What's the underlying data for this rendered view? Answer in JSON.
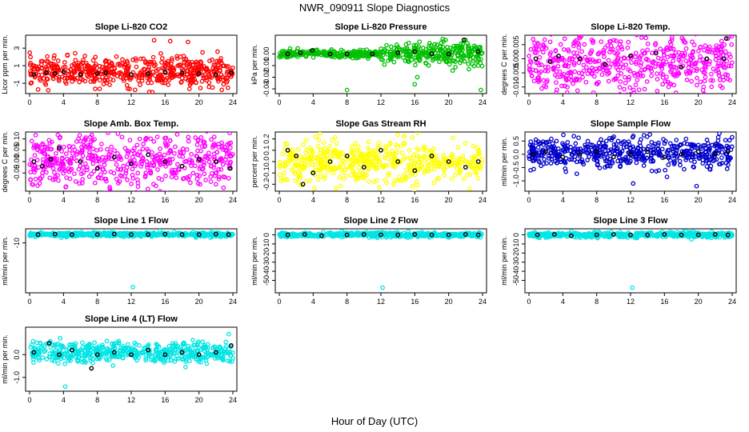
{
  "page_title": "NWR_090911  Slope Diagnostics",
  "x_axis_label": "Hour of Day (UTC)",
  "colors": {
    "black_series": "#000000",
    "background": "#ffffff"
  },
  "chart_data": [
    {
      "type": "scatter",
      "title": "Slope Li-820 CO2",
      "ylabel": "Licor ppm per min.",
      "xlim": [
        0,
        24
      ],
      "ylim": [
        -1.9,
        4.2
      ],
      "xticks": [
        0,
        4,
        8,
        12,
        16,
        20,
        24
      ],
      "yticks": [
        -1,
        1,
        3
      ],
      "color": "#ff0000",
      "density": [
        [
          0,
          24,
          0.3,
          0.8
        ]
      ],
      "outliers": [
        [
          14.7,
          3.9
        ],
        [
          16.6,
          3.8
        ],
        [
          18.7,
          3.7
        ],
        [
          15.5,
          2.4
        ],
        [
          16.8,
          1.6
        ],
        [
          18.2,
          2.1
        ],
        [
          1.0,
          -1.7
        ],
        [
          2.2,
          -1.8
        ],
        [
          11.6,
          -1.6
        ]
      ],
      "black_points": [
        [
          0.5,
          0.0
        ],
        [
          2.0,
          0.2
        ],
        [
          3.0,
          0.1
        ],
        [
          4.0,
          0.3
        ],
        [
          6.0,
          0.0
        ],
        [
          8.0,
          0.1
        ],
        [
          9.0,
          0.2
        ],
        [
          12.0,
          0.0
        ],
        [
          14.0,
          0.1
        ],
        [
          16.0,
          0.3
        ],
        [
          18.0,
          0.2
        ],
        [
          20.0,
          0.1
        ],
        [
          22.0,
          0.0
        ],
        [
          23.8,
          0.2
        ]
      ]
    },
    {
      "type": "scatter",
      "title": "Slope Li-820 Pressure",
      "ylabel": "kPa per min.",
      "xlim": [
        0,
        24
      ],
      "ylim": [
        -0.032,
        0.014
      ],
      "xticks": [
        0,
        4,
        8,
        12,
        16,
        20,
        24
      ],
      "yticks": [
        -0.03,
        -0.02,
        -0.01,
        0.0
      ],
      "color": "#00c000",
      "density": [
        [
          0,
          12,
          0.0,
          0.0015
        ],
        [
          12,
          24,
          0.0,
          0.005
        ]
      ],
      "outliers": [
        [
          8.0,
          -0.031
        ],
        [
          16.0,
          -0.026
        ],
        [
          23.8,
          -0.031
        ],
        [
          16.3,
          -0.02
        ],
        [
          22.0,
          0.012
        ]
      ],
      "black_points": [
        [
          1.0,
          0.0
        ],
        [
          2.5,
          0.001
        ],
        [
          3.9,
          0.003
        ],
        [
          6.0,
          0.0
        ],
        [
          8.0,
          0.0
        ],
        [
          11.0,
          0.0
        ],
        [
          14.0,
          0.001
        ],
        [
          16.0,
          0.002
        ],
        [
          18.0,
          0.0
        ],
        [
          20.0,
          0.0
        ],
        [
          21.8,
          0.012
        ],
        [
          23.5,
          0.002
        ]
      ]
    },
    {
      "type": "scatter",
      "title": "Slope Li-820 Temp.",
      "ylabel": "degrees C per min.",
      "xlim": [
        0,
        24
      ],
      "ylim": [
        -0.0115,
        0.0075
      ],
      "xticks": [
        0,
        4,
        8,
        12,
        16,
        20,
        24
      ],
      "yticks": [
        -0.01,
        -0.005,
        0.0,
        0.005
      ],
      "color": "#ff00ff",
      "density": [
        [
          0,
          24,
          -0.002,
          0.005
        ]
      ],
      "outliers": [
        [
          2.0,
          -0.01
        ],
        [
          3.3,
          -0.011
        ],
        [
          13.0,
          -0.011
        ],
        [
          23.5,
          0.0072
        ],
        [
          2.5,
          0.006
        ]
      ],
      "black_points": [
        [
          0.8,
          0.0
        ],
        [
          2.5,
          -0.001
        ],
        [
          3.5,
          0.001
        ],
        [
          6.0,
          0.0
        ],
        [
          9.0,
          -0.002
        ],
        [
          12.0,
          0.001
        ],
        [
          15.0,
          0.002
        ],
        [
          18.0,
          -0.003
        ],
        [
          21.0,
          0.0
        ],
        [
          23.3,
          0.0072
        ],
        [
          23.0,
          0.0
        ]
      ]
    },
    {
      "type": "scatter",
      "title": "Slope Amb. Box Temp.",
      "ylabel": "degrees C per min.",
      "xlim": [
        0,
        24
      ],
      "ylim": [
        -0.12,
        0.12
      ],
      "xticks": [
        0,
        4,
        8,
        12,
        16,
        20,
        24
      ],
      "yticks": [
        -0.05,
        0.0,
        0.05,
        0.1
      ],
      "color": "#ff00ff",
      "density": [
        [
          0,
          24,
          0.0,
          0.065
        ]
      ],
      "outliers": [
        [
          4.3,
          -0.11
        ],
        [
          0.3,
          -0.1
        ],
        [
          12.8,
          -0.11
        ],
        [
          22.0,
          -0.1
        ],
        [
          13.0,
          0.1
        ]
      ],
      "black_points": [
        [
          0.5,
          0.0
        ],
        [
          1.5,
          -0.02
        ],
        [
          2.5,
          0.01
        ],
        [
          3.5,
          0.06
        ],
        [
          6.0,
          0.0
        ],
        [
          8.0,
          -0.03
        ],
        [
          10.0,
          0.02
        ],
        [
          12.0,
          -0.01
        ],
        [
          14.0,
          0.03
        ],
        [
          16.0,
          0.0
        ],
        [
          18.0,
          -0.02
        ],
        [
          20.0,
          0.01
        ],
        [
          22.0,
          0.0
        ],
        [
          23.7,
          -0.03
        ]
      ]
    },
    {
      "type": "scatter",
      "title": "Slope Gas Stream RH",
      "ylabel": "percent per min.",
      "xlim": [
        0,
        24
      ],
      "ylim": [
        -0.24,
        0.24
      ],
      "xticks": [
        0,
        4,
        8,
        12,
        16,
        20,
        24
      ],
      "yticks": [
        -0.2,
        -0.1,
        0.0,
        0.1,
        0.2
      ],
      "color": "#ffff00",
      "density": [
        [
          0,
          24,
          0.0,
          0.09
        ]
      ],
      "outliers": [
        [
          2.6,
          -0.21
        ],
        [
          4.3,
          0.22
        ],
        [
          13.5,
          -0.2
        ],
        [
          16.2,
          -0.18
        ],
        [
          20.5,
          0.21
        ]
      ],
      "black_points": [
        [
          1.0,
          0.1
        ],
        [
          2.0,
          0.05
        ],
        [
          2.8,
          -0.2
        ],
        [
          4.0,
          -0.1
        ],
        [
          6.0,
          0.0
        ],
        [
          8.0,
          0.05
        ],
        [
          10.0,
          -0.05
        ],
        [
          12.0,
          0.1
        ],
        [
          14.0,
          0.0
        ],
        [
          16.0,
          -0.08
        ],
        [
          18.0,
          0.05
        ],
        [
          20.0,
          0.0
        ],
        [
          22.0,
          -0.05
        ],
        [
          23.5,
          0.0
        ]
      ]
    },
    {
      "type": "scatter",
      "title": "Slope Sample Flow",
      "ylabel": "ml/min per min.",
      "xlim": [
        0,
        24
      ],
      "ylim": [
        -1.3,
        0.75
      ],
      "xticks": [
        0,
        4,
        8,
        12,
        16,
        20,
        24
      ],
      "yticks": [
        -1.0,
        -0.5,
        0.0,
        0.5
      ],
      "color": "#0000cc",
      "density": [
        [
          0,
          24,
          0.05,
          0.28
        ]
      ],
      "outliers": [
        [
          12.3,
          -1.1
        ],
        [
          19.8,
          -1.2
        ],
        [
          16.3,
          -0.85
        ],
        [
          0.2,
          -0.6
        ]
      ],
      "black_points": [
        [
          0.5,
          0.0
        ],
        [
          2.0,
          0.1
        ],
        [
          4.0,
          -0.1
        ],
        [
          6.0,
          0.0
        ],
        [
          8.0,
          0.1
        ],
        [
          10.0,
          -0.1
        ],
        [
          12.0,
          0.0
        ],
        [
          14.0,
          0.1
        ],
        [
          16.0,
          -0.1
        ],
        [
          18.0,
          0.0
        ],
        [
          20.0,
          0.1
        ],
        [
          22.0,
          0.0
        ],
        [
          23.5,
          0.1
        ]
      ]
    },
    {
      "type": "scatter",
      "title": "Slope Line 1 Flow",
      "ylabel": "ml/min per min.",
      "xlim": [
        0,
        24
      ],
      "ylim": [
        -67,
        4
      ],
      "xticks": [
        0,
        4,
        8,
        12,
        16,
        20,
        24
      ],
      "yticks": [
        -10
      ],
      "color": "#00e5e5",
      "density": [
        [
          0,
          24,
          0.0,
          1.2
        ]
      ],
      "outliers": [
        [
          12.2,
          -63
        ]
      ],
      "black_points": [
        [
          1.0,
          0.0
        ],
        [
          3.0,
          0.5
        ],
        [
          5.0,
          0.0
        ],
        [
          8.0,
          0.0
        ],
        [
          10.0,
          0.5
        ],
        [
          12.0,
          0.0
        ],
        [
          14.0,
          0.0
        ],
        [
          16.0,
          0.5
        ],
        [
          18.0,
          0.0
        ],
        [
          20.0,
          0.0
        ],
        [
          22.0,
          0.5
        ],
        [
          23.5,
          0.0
        ]
      ]
    },
    {
      "type": "scatter",
      "title": "Slope Line 2 Flow",
      "ylabel": "ml/min per min.",
      "xlim": [
        0,
        24
      ],
      "ylim": [
        -61,
        4
      ],
      "xticks": [
        0,
        4,
        8,
        12,
        16,
        20,
        24
      ],
      "yticks": [
        -50,
        -40,
        -30,
        -20,
        -10,
        0
      ],
      "color": "#00e5e5",
      "density": [
        [
          0,
          24,
          0.0,
          1.2
        ]
      ],
      "outliers": [
        [
          12.2,
          -58
        ],
        [
          5.2,
          3
        ],
        [
          4.6,
          -2
        ]
      ],
      "black_points": [
        [
          1.0,
          0.0
        ],
        [
          3.0,
          0.5
        ],
        [
          5.0,
          -1.0
        ],
        [
          8.0,
          0.0
        ],
        [
          10.0,
          0.5
        ],
        [
          12.0,
          0.0
        ],
        [
          14.0,
          0.0
        ],
        [
          16.0,
          0.5
        ],
        [
          18.0,
          0.0
        ],
        [
          20.0,
          0.0
        ],
        [
          22.0,
          0.5
        ],
        [
          23.5,
          0.0
        ]
      ]
    },
    {
      "type": "scatter",
      "title": "Slope Line 3 Flow",
      "ylabel": "ml/min per min.",
      "xlim": [
        0,
        24
      ],
      "ylim": [
        -61,
        4
      ],
      "xticks": [
        0,
        4,
        8,
        12,
        16,
        20,
        24
      ],
      "yticks": [
        -50,
        -40,
        -30,
        -20,
        -10,
        0
      ],
      "color": "#00e5e5",
      "density": [
        [
          0,
          24,
          0.0,
          1.3
        ]
      ],
      "outliers": [
        [
          12.2,
          -58
        ],
        [
          5.0,
          4
        ],
        [
          18.5,
          4
        ],
        [
          19.2,
          -5
        ]
      ],
      "black_points": [
        [
          1.0,
          0.0
        ],
        [
          3.0,
          0.5
        ],
        [
          5.0,
          -1.0
        ],
        [
          8.0,
          0.0
        ],
        [
          10.0,
          0.5
        ],
        [
          12.0,
          0.0
        ],
        [
          14.0,
          0.0
        ],
        [
          16.0,
          0.5
        ],
        [
          18.0,
          0.0
        ],
        [
          20.0,
          0.0
        ],
        [
          22.0,
          0.5
        ],
        [
          23.5,
          0.0
        ]
      ]
    },
    {
      "type": "scatter",
      "title": "Slope Line 4 (LT) Flow",
      "ylabel": "ml/min per min.",
      "xlim": [
        0,
        24
      ],
      "ylim": [
        -1.5,
        1.1
      ],
      "xticks": [
        0,
        4,
        8,
        12,
        16,
        20,
        24
      ],
      "yticks": [
        -1.0,
        0.0
      ],
      "color": "#00e5e5",
      "density": [
        [
          0,
          24,
          0.1,
          0.22
        ]
      ],
      "outliers": [
        [
          4.2,
          -1.4
        ],
        [
          23.5,
          0.9
        ]
      ],
      "black_points": [
        [
          0.5,
          0.1
        ],
        [
          2.3,
          0.5
        ],
        [
          3.5,
          0.0
        ],
        [
          5.0,
          0.2
        ],
        [
          7.3,
          -0.6
        ],
        [
          8.0,
          0.0
        ],
        [
          10.0,
          0.1
        ],
        [
          12.0,
          0.0
        ],
        [
          14.0,
          0.2
        ],
        [
          16.0,
          0.0
        ],
        [
          18.0,
          0.1
        ],
        [
          20.0,
          0.0
        ],
        [
          22.0,
          0.1
        ],
        [
          23.8,
          0.4
        ]
      ]
    }
  ]
}
